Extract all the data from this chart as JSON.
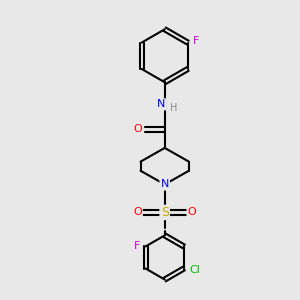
{
  "background_color": "#e8e8e8",
  "bond_color": "#000000",
  "atom_colors": {
    "N": "#0000ee",
    "O": "#ff0000",
    "S": "#ccaa00",
    "F": "#cc00cc",
    "Cl": "#00bb00",
    "H": "#888888"
  },
  "figsize": [
    3.0,
    3.0
  ],
  "dpi": 100,
  "xlim": [
    0,
    10
  ],
  "ylim": [
    0,
    10
  ]
}
